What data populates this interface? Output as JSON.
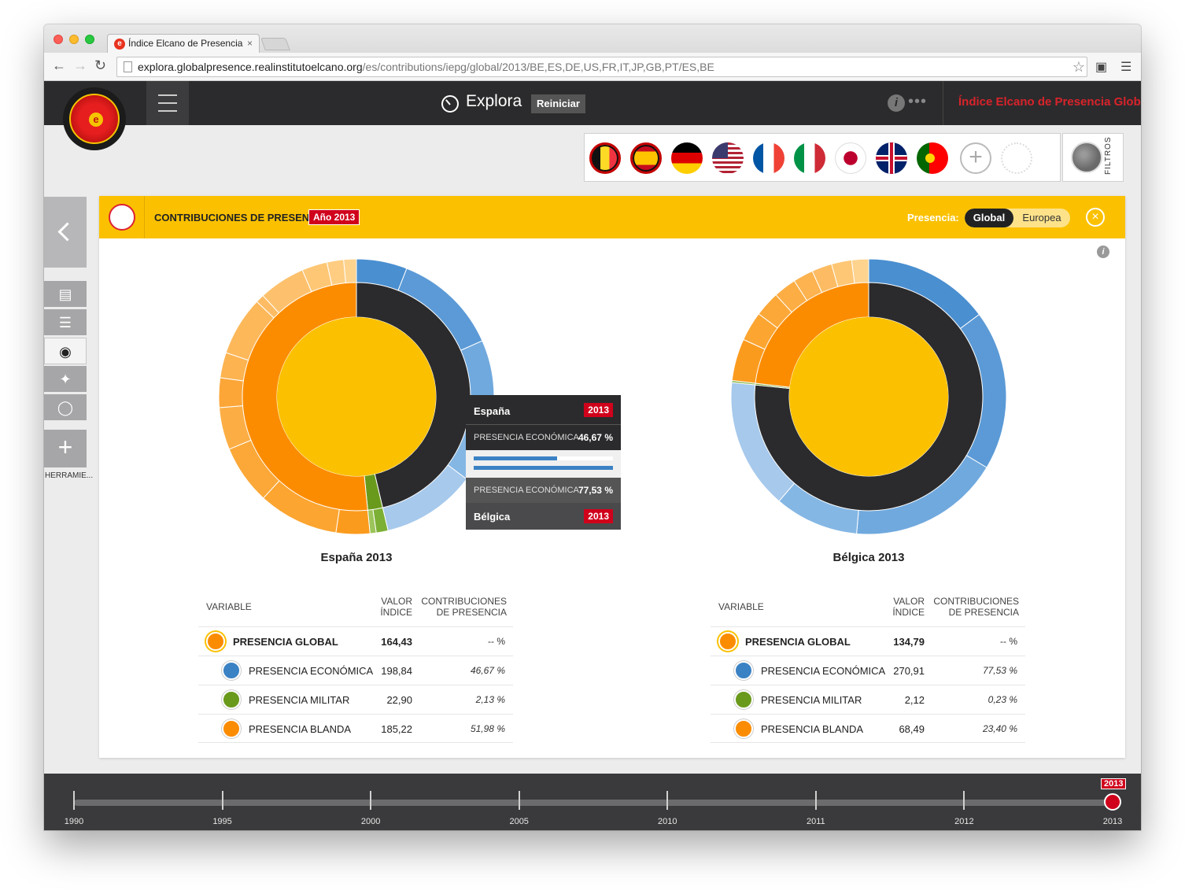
{
  "browser": {
    "tab_title": "Índice Elcano de Presencia",
    "tab_close": "×",
    "url_host": "explora.globalpresence.realinstitutoelcano.org",
    "url_path": "/es/contributions/iepg/global/2013/BE,ES,DE,US,FR,IT,JP,GB,PT/ES,BE"
  },
  "appbar": {
    "title": "Explora",
    "reset_label": "Reiniciar",
    "info_label": "i",
    "more_label": "•••",
    "brand": "Índice Elcano de Presencia Global"
  },
  "flags": [
    "BE",
    "ES",
    "DE",
    "US",
    "FR",
    "IT",
    "JP",
    "GB",
    "PT"
  ],
  "filters_label": "FILTROS",
  "tools_label": "HERRAMIE...",
  "panel": {
    "title": "CONTRIBUCIONES DE PRESENCIA",
    "year_badge": "Año 2013",
    "presence_label": "Presencia:",
    "toggle_global": "Global",
    "toggle_europea": "Europea",
    "close_label": "×",
    "info_label": "i"
  },
  "chart_data": [
    {
      "type": "pie",
      "title": "España 2013",
      "inner_ring": [
        {
          "name": "PRESENCIA ECONÓMICA",
          "value": 46.67,
          "color": "#2b2b2d"
        },
        {
          "name": "PRESENCIA MILITAR",
          "value": 2.13,
          "color": "#6a9a1c"
        },
        {
          "name": "PRESENCIA BLANDA",
          "value": 51.98,
          "color": "#fb8c00"
        }
      ],
      "outer_ring": [
        {
          "group": "economica",
          "value": 6.0,
          "color": "#4a8fd0"
        },
        {
          "group": "economica",
          "value": 12.5,
          "color": "#5b9ad6"
        },
        {
          "group": "economica",
          "value": 10.0,
          "color": "#70a9de"
        },
        {
          "group": "economica",
          "value": 7.0,
          "color": "#85b7e4"
        },
        {
          "group": "economica",
          "value": 11.17,
          "color": "#a6c9ec"
        },
        {
          "group": "militar",
          "value": 1.4,
          "color": "#7cb035"
        },
        {
          "group": "militar",
          "value": 0.73,
          "color": "#9cc45a"
        },
        {
          "group": "blanda",
          "value": 4.0,
          "color": "#fb9b1e"
        },
        {
          "group": "blanda",
          "value": 9.5,
          "color": "#fca531"
        },
        {
          "group": "blanda",
          "value": 7.0,
          "color": "#fba838"
        },
        {
          "group": "blanda",
          "value": 5.0,
          "color": "#fcae45"
        },
        {
          "group": "blanda",
          "value": 3.5,
          "color": "#fca638"
        },
        {
          "group": "blanda",
          "value": 3.0,
          "color": "#fcb350"
        },
        {
          "group": "blanda",
          "value": 7.0,
          "color": "#fdb85a"
        },
        {
          "group": "blanda",
          "value": 1.0,
          "color": "#fdbc63"
        },
        {
          "group": "blanda",
          "value": 5.5,
          "color": "#fdc16d"
        },
        {
          "group": "blanda",
          "value": 3.0,
          "color": "#fec775"
        },
        {
          "group": "blanda",
          "value": 1.98,
          "color": "#fecd82"
        },
        {
          "group": "blanda",
          "value": 1.5,
          "color": "#fed38e"
        }
      ]
    },
    {
      "type": "pie",
      "title": "Bélgica 2013",
      "inner_ring": [
        {
          "name": "PRESENCIA ECONÓMICA",
          "value": 77.53,
          "color": "#2b2b2d"
        },
        {
          "name": "PRESENCIA MILITAR",
          "value": 0.23,
          "color": "#6a9a1c"
        },
        {
          "name": "PRESENCIA BLANDA",
          "value": 23.4,
          "color": "#fb8c00"
        }
      ],
      "outer_ring": [
        {
          "group": "economica",
          "value": 15.0,
          "color": "#4a8fd0"
        },
        {
          "group": "economica",
          "value": 19.0,
          "color": "#5b9ad6"
        },
        {
          "group": "economica",
          "value": 18.0,
          "color": "#70a9de"
        },
        {
          "group": "economica",
          "value": 10.0,
          "color": "#85b7e4"
        },
        {
          "group": "economica",
          "value": 15.53,
          "color": "#a6c9ec"
        },
        {
          "group": "militar",
          "value": 0.23,
          "color": "#7cb035"
        },
        {
          "group": "blanda",
          "value": 5.0,
          "color": "#fb9b1e"
        },
        {
          "group": "blanda",
          "value": 3.5,
          "color": "#fca531"
        },
        {
          "group": "blanda",
          "value": 3.0,
          "color": "#fba838"
        },
        {
          "group": "blanda",
          "value": 2.7,
          "color": "#fcae45"
        },
        {
          "group": "blanda",
          "value": 2.4,
          "color": "#fcb350"
        },
        {
          "group": "blanda",
          "value": 2.4,
          "color": "#fdbc63"
        },
        {
          "group": "blanda",
          "value": 2.4,
          "color": "#fec775"
        },
        {
          "group": "blanda",
          "value": 2.0,
          "color": "#fed38e"
        }
      ]
    }
  ],
  "tooltip": {
    "country_a": "España",
    "year_a": "2013",
    "var_a": "PRESENCIA ECONÓMICA",
    "val_a": "46,67 %",
    "var_b": "PRESENCIA ECONÓMICA",
    "val_b": "77,53 %",
    "country_b": "Bélgica",
    "year_b": "2013",
    "bar_a": 0.6,
    "bar_b": 1.0
  },
  "tables": {
    "headers": {
      "variable": "VARIABLE",
      "valor_1": "VALOR",
      "valor_2": "ÍNDICE",
      "contrib_1": "CONTRIBUCIONES",
      "contrib_2": "DE PRESENCIA"
    },
    "spain": [
      {
        "label": "PRESENCIA GLOBAL",
        "valor": "164,43",
        "contrib": "-- %"
      },
      {
        "label": "PRESENCIA ECONÓMICA",
        "valor": "198,84",
        "contrib": "46,67 %"
      },
      {
        "label": "PRESENCIA MILITAR",
        "valor": "22,90",
        "contrib": "2,13 %"
      },
      {
        "label": "PRESENCIA BLANDA",
        "valor": "185,22",
        "contrib": "51,98 %"
      }
    ],
    "belgium": [
      {
        "label": "PRESENCIA GLOBAL",
        "valor": "134,79",
        "contrib": "-- %"
      },
      {
        "label": "PRESENCIA ECONÓMICA",
        "valor": "270,91",
        "contrib": "77,53 %"
      },
      {
        "label": "PRESENCIA MILITAR",
        "valor": "2,12",
        "contrib": "0,23 %"
      },
      {
        "label": "PRESENCIA BLANDA",
        "valor": "68,49",
        "contrib": "23,40 %"
      }
    ]
  },
  "timeline": {
    "years": [
      "1990",
      "1995",
      "2000",
      "2005",
      "2010",
      "2011",
      "2012",
      "2013"
    ],
    "selected": "2013"
  }
}
